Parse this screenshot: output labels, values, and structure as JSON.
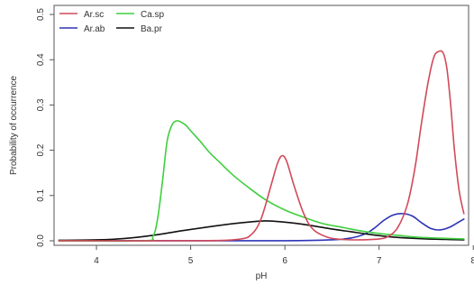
{
  "chart_data": {
    "type": "line",
    "xlabel": "pH",
    "ylabel": "Probability of occurrence",
    "xlim": [
      3.55,
      7.95
    ],
    "ylim": [
      -0.01,
      0.52
    ],
    "xticks": [
      4,
      5,
      6,
      7,
      8
    ],
    "yticks": [
      0.0,
      0.1,
      0.2,
      0.3,
      0.4,
      0.5
    ],
    "ytick_labels": [
      "0.0",
      "0.1",
      "0.2",
      "0.3",
      "0.4",
      "0.5"
    ],
    "legend_position": "top-left",
    "series": [
      {
        "name": "Ar.sc",
        "color": "#d14a5a",
        "x": [
          3.6,
          5.0,
          5.5,
          5.65,
          5.75,
          5.85,
          5.92,
          5.97,
          6.02,
          6.1,
          6.2,
          6.3,
          6.45,
          6.6,
          6.8,
          7.0,
          7.1,
          7.2,
          7.3,
          7.38,
          7.45,
          7.52,
          7.58,
          7.63,
          7.68,
          7.72,
          7.76,
          7.8,
          7.85,
          7.9
        ],
        "y": [
          0.0,
          0.0,
          0.003,
          0.015,
          0.05,
          0.12,
          0.17,
          0.188,
          0.175,
          0.12,
          0.06,
          0.025,
          0.008,
          0.003,
          0.002,
          0.004,
          0.01,
          0.03,
          0.08,
          0.16,
          0.26,
          0.35,
          0.405,
          0.418,
          0.415,
          0.38,
          0.3,
          0.2,
          0.11,
          0.06
        ]
      },
      {
        "name": "Ar.ab",
        "color": "#2d34b5",
        "x": [
          3.6,
          5.0,
          6.0,
          6.5,
          6.7,
          6.85,
          6.95,
          7.05,
          7.15,
          7.25,
          7.35,
          7.45,
          7.55,
          7.65,
          7.75,
          7.85,
          7.9
        ],
        "y": [
          0.0,
          0.0,
          0.0,
          0.002,
          0.006,
          0.015,
          0.028,
          0.045,
          0.057,
          0.06,
          0.055,
          0.04,
          0.027,
          0.024,
          0.03,
          0.042,
          0.048
        ]
      },
      {
        "name": "Ca.sp",
        "color": "#3fcf3f",
        "x": [
          3.6,
          4.5,
          4.6,
          4.65,
          4.7,
          4.75,
          4.8,
          4.85,
          4.9,
          4.95,
          5.0,
          5.1,
          5.2,
          5.3,
          5.45,
          5.6,
          5.8,
          6.0,
          6.2,
          6.4,
          6.6,
          6.8,
          7.0,
          7.2,
          7.4,
          7.6,
          7.9
        ],
        "y": [
          0.0,
          0.0,
          0.01,
          0.05,
          0.13,
          0.22,
          0.255,
          0.265,
          0.262,
          0.255,
          0.243,
          0.22,
          0.195,
          0.175,
          0.145,
          0.12,
          0.09,
          0.068,
          0.052,
          0.038,
          0.03,
          0.022,
          0.016,
          0.012,
          0.008,
          0.006,
          0.004
        ]
      },
      {
        "name": "Ba.pr",
        "color": "#111111",
        "x": [
          3.6,
          4.0,
          4.3,
          4.6,
          4.9,
          5.2,
          5.5,
          5.7,
          5.8,
          5.9,
          6.1,
          6.3,
          6.5,
          6.7,
          6.9,
          7.1,
          7.3,
          7.5,
          7.7,
          7.9
        ],
        "y": [
          0.001,
          0.002,
          0.005,
          0.012,
          0.022,
          0.031,
          0.039,
          0.043,
          0.044,
          0.043,
          0.039,
          0.033,
          0.026,
          0.02,
          0.014,
          0.009,
          0.006,
          0.004,
          0.003,
          0.002
        ]
      }
    ]
  }
}
